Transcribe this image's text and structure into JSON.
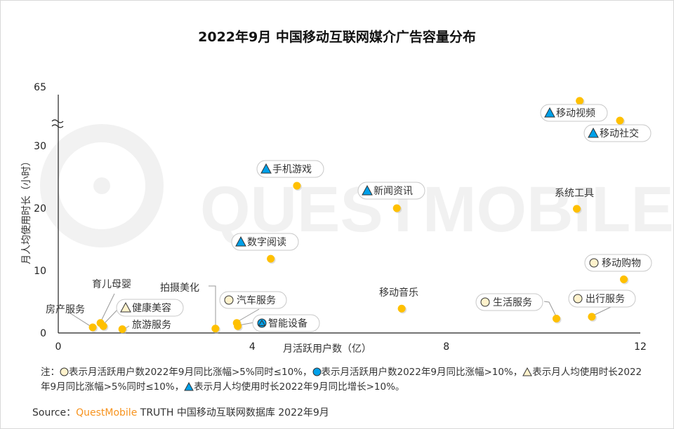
{
  "chart_data": {
    "type": "scatter",
    "title": "2022年9月 中国移动互联网媒介广告容量分布",
    "xlabel": "月活跃用户数（亿）",
    "ylabel": "月人均使用时长（小时）",
    "xlim": [
      0,
      12
    ],
    "ylim": [
      0,
      65
    ],
    "y_axis_break": [
      30,
      65
    ],
    "x_ticks": [
      "0",
      "4",
      "8",
      "12"
    ],
    "y_ticks": [
      "0",
      "10",
      "20",
      "30",
      "65"
    ],
    "grid": false,
    "point_color": "#FFC000",
    "marker_colors": {
      "blue": "#00A0E9",
      "beige": "#FFF2CC"
    },
    "points": [
      {
        "label": "房产服务",
        "x": 0.71,
        "y": 0.9,
        "marker": "none"
      },
      {
        "label": "育儿母婴",
        "x": 0.87,
        "y": 1.6,
        "marker": "none"
      },
      {
        "label": "健康美容",
        "x": 0.93,
        "y": 1.1,
        "marker": "triangle-beige"
      },
      {
        "label": "旅游服务",
        "x": 1.32,
        "y": 0.6,
        "marker": "none"
      },
      {
        "label": "拍摄美化",
        "x": 3.24,
        "y": 0.7,
        "marker": "none"
      },
      {
        "label": "汽车服务",
        "x": 3.68,
        "y": 1.6,
        "marker": "circle-beige"
      },
      {
        "label": "智能设备",
        "x": 3.7,
        "y": 1.1,
        "marker": "circle-blue-triangle"
      },
      {
        "label": "数字阅读",
        "x": 4.38,
        "y": 11.9,
        "marker": "triangle-blue"
      },
      {
        "label": "手机游戏",
        "x": 4.92,
        "y": 23.6,
        "marker": "triangle-blue"
      },
      {
        "label": "新闻资讯",
        "x": 6.98,
        "y": 20.0,
        "marker": "triangle-blue"
      },
      {
        "label": "移动音乐",
        "x": 7.08,
        "y": 3.9,
        "marker": "none"
      },
      {
        "label": "生活服务",
        "x": 10.27,
        "y": 2.3,
        "marker": "circle-beige"
      },
      {
        "label": "出行服务",
        "x": 11.0,
        "y": 2.6,
        "marker": "circle-beige"
      },
      {
        "label": "系统工具",
        "x": 10.69,
        "y": 19.9,
        "marker": "none"
      },
      {
        "label": "移动购物",
        "x": 11.66,
        "y": 8.6,
        "marker": "circle-beige"
      },
      {
        "label": "移动视频",
        "x": 10.75,
        "y": 56.7,
        "marker": "triangle-blue"
      },
      {
        "label": "移动社交",
        "x": 11.58,
        "y": 45.0,
        "marker": "triangle-blue"
      }
    ]
  },
  "note": {
    "prefix": "注：",
    "part1": "表示月活跃用户数2022年9月同比涨幅>5%同时≤10%，",
    "part2": "表示月活跃用户数2022年9月同比涨幅>10%，",
    "part3": "表示月人均使用时长2022年9月同比涨幅>5%同时≤10%，",
    "part4": "表示月人均使用时长2022年9月同比增长>10%。"
  },
  "source": {
    "prefix": "Source：",
    "brand": "QuestMobile",
    "rest": " TRUTH 中国移动互联网数据库 2022年9月"
  },
  "watermark": "QUESTMOBILE"
}
